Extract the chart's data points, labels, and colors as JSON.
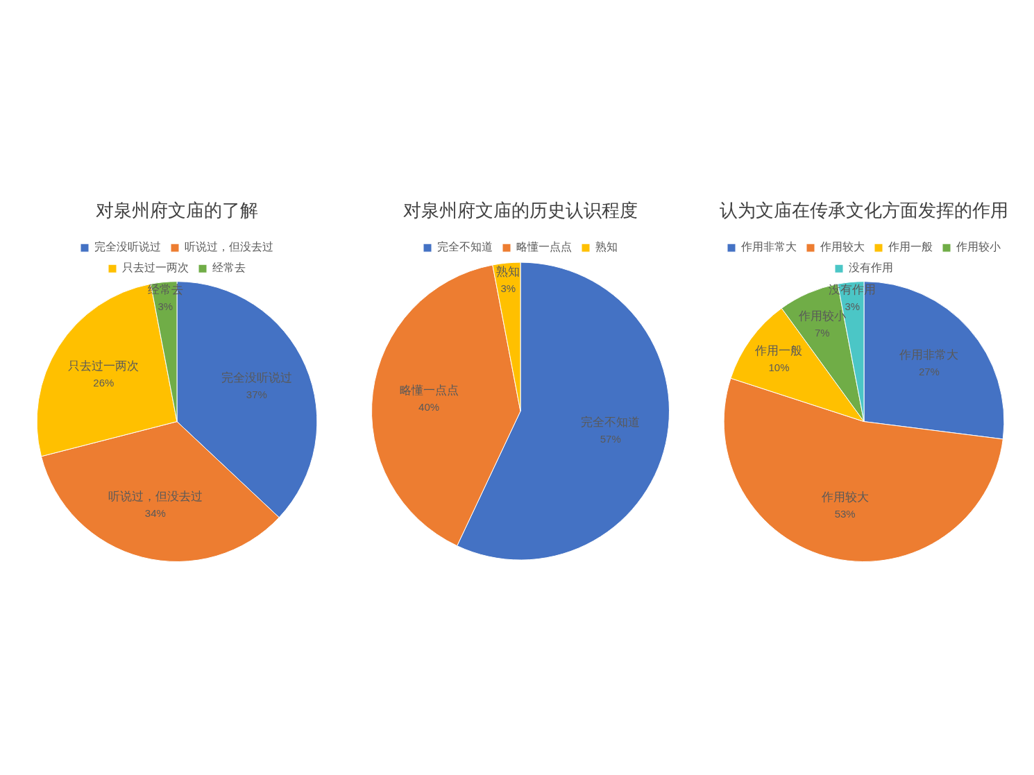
{
  "chart_data": [
    {
      "type": "pie",
      "title": "对泉州府文庙的了解",
      "categories": [
        "完全没听说过",
        "听说过，但没去过",
        "只去过一两次",
        "经常去"
      ],
      "values": [
        37,
        34,
        26,
        3
      ],
      "value_labels": [
        "37%",
        "34%",
        "26%",
        "3%"
      ],
      "colors": [
        "#4472c4",
        "#ed7d31",
        "#ffc000",
        "#70ad47"
      ],
      "legend": "top"
    },
    {
      "type": "pie",
      "title": "对泉州府文庙的历史认识程度",
      "categories": [
        "完全不知道",
        "略懂一点点",
        "熟知"
      ],
      "values": [
        57,
        40,
        3
      ],
      "value_labels": [
        "57%",
        "40%",
        "3%"
      ],
      "colors": [
        "#4472c4",
        "#ed7d31",
        "#ffc000"
      ],
      "legend": "top"
    },
    {
      "type": "pie",
      "title": "认为文庙在传承文化方面发挥的作用",
      "categories": [
        "作用非常大",
        "作用较大",
        "作用一般",
        "作用较小",
        "没有作用"
      ],
      "values": [
        27,
        53,
        10,
        7,
        3
      ],
      "value_labels": [
        "27%",
        "53%",
        "10%",
        "7%",
        "3%"
      ],
      "colors": [
        "#4472c4",
        "#ed7d31",
        "#ffc000",
        "#70ad47",
        "#4bc6c6"
      ],
      "legend": "top"
    }
  ]
}
